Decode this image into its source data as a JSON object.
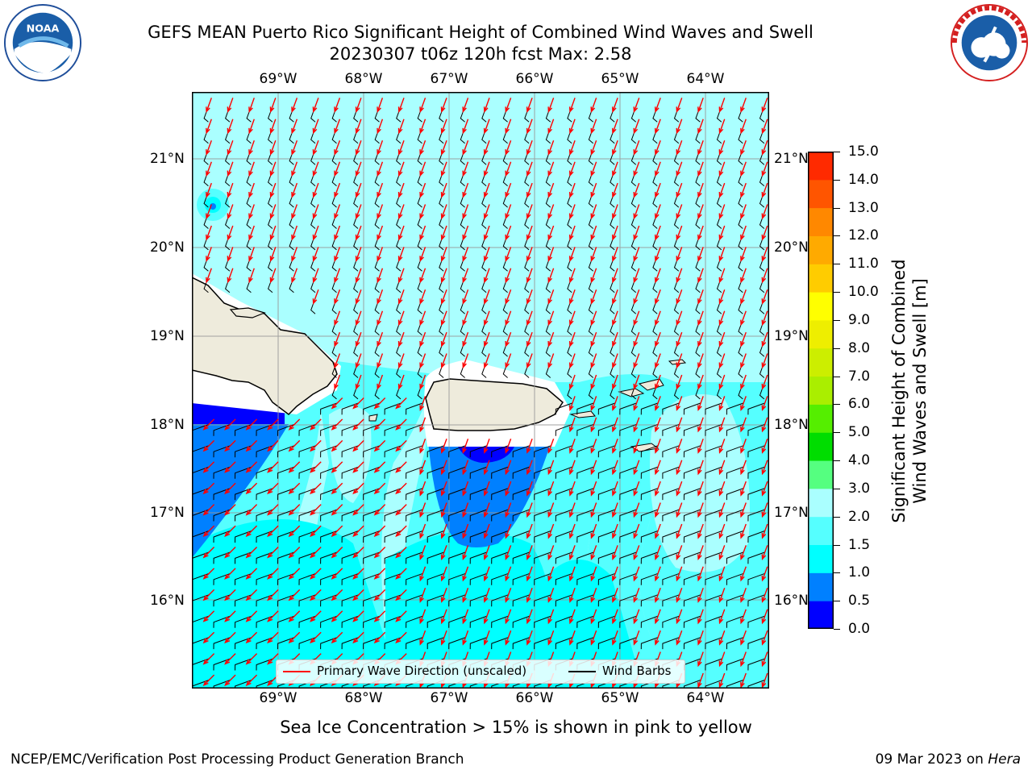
{
  "title": {
    "line1": "GEFS MEAN Puerto Rico Significant Height of Combined Wind Waves and Swell",
    "line2": "20230307 t06z 120h fcst   Max: 2.58"
  },
  "logos": {
    "left": "noaa-logo",
    "left_text": "NOAA",
    "right": "nws-logo"
  },
  "map": {
    "lon_labels": [
      "69°W",
      "68°W",
      "67°W",
      "66°W",
      "65°W",
      "64°W"
    ],
    "lat_labels": [
      "21°N",
      "20°N",
      "19°N",
      "18°N",
      "17°N",
      "16°N"
    ],
    "land_color": "#eeebdc",
    "ocean_colors": {
      "1.5-2.0": "#55ffff",
      "2.0-3.0": "#aaffff",
      "1.0-1.5": "#00ffff",
      "0.5-1.0": "#0080ff",
      "0.0-0.5": "#0000ff"
    }
  },
  "legend": {
    "wave_direction": "Primary Wave Direction (unscaled)",
    "wind_barbs": "Wind Barbs",
    "wave_color": "#ff0000",
    "barb_color": "#000000"
  },
  "colorbar": {
    "label_line1": "Significant Height of Combined",
    "label_line2": "Wind Waves and Swell [m]",
    "ticks": [
      "0.0",
      "0.5",
      "1.0",
      "1.5",
      "2.0",
      "3.0",
      "4.0",
      "5.0",
      "6.0",
      "7.0",
      "8.0",
      "9.0",
      "10.0",
      "11.0",
      "12.0",
      "13.0",
      "14.0",
      "15.0"
    ],
    "colors": [
      "#0000ff",
      "#0080ff",
      "#00ffff",
      "#55ffff",
      "#aaffff",
      "#55ff80",
      "#00dd00",
      "#55ee00",
      "#aaee00",
      "#ccee00",
      "#eeee00",
      "#ffff00",
      "#ffcc00",
      "#ffaa00",
      "#ff8800",
      "#ff5500",
      "#ff2a00",
      "#ff0000"
    ]
  },
  "subtitle": "Sea Ice Concentration > 15% is shown in pink to yellow",
  "footer": {
    "left": "NCEP/EMC/Verification Post Processing Product Generation Branch",
    "right_date": "09 Mar 2023 on ",
    "right_host": "Hera"
  }
}
